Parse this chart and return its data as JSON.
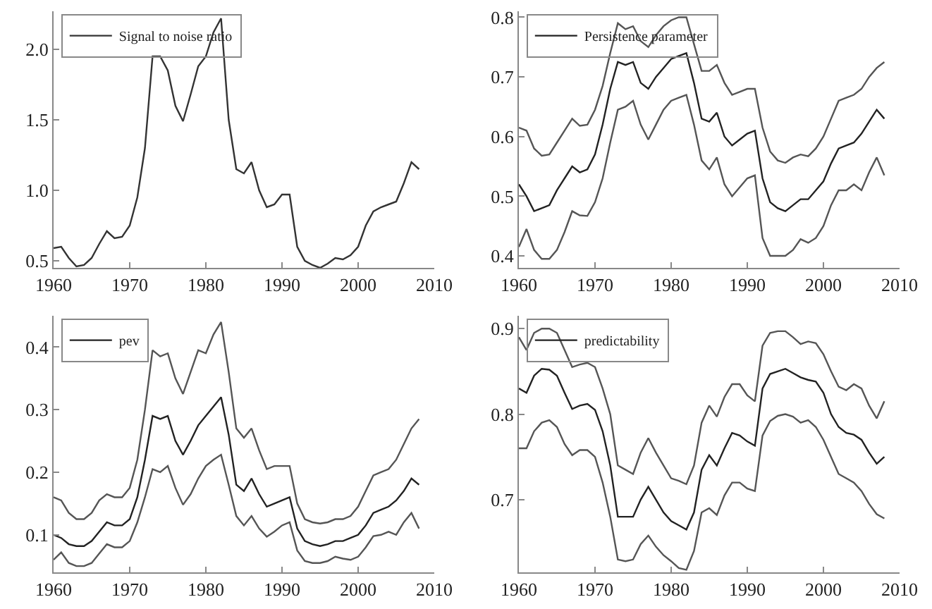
{
  "chart_data": [
    {
      "type": "line",
      "legend": "top left",
      "grid": false,
      "xlim": [
        1960,
        2010
      ],
      "xticks": [
        1960,
        1970,
        1980,
        1990,
        2000,
        2010
      ],
      "ylim": [
        0.45,
        2.27
      ],
      "yticks": [
        {
          "value": 0.5,
          "label": "0.5"
        },
        {
          "value": 1,
          "label": "1.0"
        },
        {
          "value": 1.5,
          "label": "1.5"
        },
        {
          "value": 2,
          "label": "2.0"
        }
      ],
      "x": [
        1960,
        1961,
        1962,
        1963,
        1964,
        1965,
        1966,
        1967,
        1968,
        1969,
        1970,
        1971,
        1972,
        1973,
        1974,
        1975,
        1976,
        1977,
        1978,
        1979,
        1980,
        1981,
        1982,
        1983,
        1984,
        1985,
        1986,
        1987,
        1988,
        1989,
        1990,
        1991,
        1992,
        1993,
        1994,
        1995,
        1996,
        1997,
        1998,
        1999,
        2000,
        2001,
        2002,
        2003,
        2004,
        2005,
        2006,
        2007,
        2008
      ],
      "series": [
        {
          "name": "Signal to noise ratio",
          "color": "#333333",
          "values": [
            0.59,
            0.6,
            0.52,
            0.46,
            0.47,
            0.52,
            0.62,
            0.71,
            0.66,
            0.67,
            0.75,
            0.95,
            1.3,
            1.95,
            1.95,
            1.85,
            1.6,
            1.49,
            1.68,
            1.88,
            1.95,
            2.12,
            2.22,
            1.5,
            1.15,
            1.12,
            1.2,
            1.0,
            0.88,
            0.9,
            0.97,
            0.97,
            0.6,
            0.5,
            0.47,
            0.45,
            0.48,
            0.52,
            0.51,
            0.54,
            0.6,
            0.75,
            0.85,
            0.88,
            0.9,
            0.92,
            1.05,
            1.2,
            1.15
          ]
        }
      ]
    },
    {
      "type": "line",
      "legend": "top left",
      "grid": false,
      "xlim": [
        1960,
        2010
      ],
      "xticks": [
        1960,
        1970,
        1980,
        1990,
        2000,
        2010
      ],
      "ylim": [
        0.38,
        0.81
      ],
      "yticks": [
        0.4,
        0.5,
        0.6,
        0.7,
        0.8
      ],
      "x": [
        1960,
        1961,
        1962,
        1963,
        1964,
        1965,
        1966,
        1967,
        1968,
        1969,
        1970,
        1971,
        1972,
        1973,
        1974,
        1975,
        1976,
        1977,
        1978,
        1979,
        1980,
        1981,
        1982,
        1983,
        1984,
        1985,
        1986,
        1987,
        1988,
        1989,
        1990,
        1991,
        1992,
        1993,
        1994,
        1995,
        1996,
        1997,
        1998,
        1999,
        2000,
        2001,
        2002,
        2003,
        2004,
        2005,
        2006,
        2007,
        2008
      ],
      "series": [
        {
          "color": "#555555",
          "values": [
            0.615,
            0.61,
            0.58,
            0.568,
            0.57,
            0.59,
            0.61,
            0.63,
            0.618,
            0.62,
            0.645,
            0.685,
            0.74,
            0.79,
            0.78,
            0.785,
            0.76,
            0.75,
            0.77,
            0.785,
            0.795,
            0.8,
            0.8,
            0.755,
            0.71,
            0.71,
            0.72,
            0.69,
            0.67,
            0.675,
            0.68,
            0.68,
            0.615,
            0.575,
            0.56,
            0.556,
            0.565,
            0.57,
            0.567,
            0.58,
            0.6,
            0.63,
            0.66,
            0.665,
            0.67,
            0.68,
            0.7,
            0.715,
            0.725
          ]
        },
        {
          "name": "Persistence parameter",
          "color": "#222222",
          "values": [
            0.52,
            0.5,
            0.475,
            0.48,
            0.485,
            0.51,
            0.53,
            0.55,
            0.54,
            0.545,
            0.57,
            0.62,
            0.68,
            0.725,
            0.72,
            0.725,
            0.69,
            0.68,
            0.7,
            0.715,
            0.73,
            0.735,
            0.74,
            0.69,
            0.63,
            0.625,
            0.64,
            0.6,
            0.585,
            0.595,
            0.605,
            0.61,
            0.53,
            0.49,
            0.48,
            0.475,
            0.485,
            0.495,
            0.495,
            0.51,
            0.525,
            0.555,
            0.58,
            0.585,
            0.59,
            0.605,
            0.625,
            0.645,
            0.63
          ]
        },
        {
          "color": "#555555",
          "values": [
            0.415,
            0.445,
            0.41,
            0.395,
            0.395,
            0.41,
            0.44,
            0.475,
            0.468,
            0.467,
            0.49,
            0.53,
            0.59,
            0.645,
            0.65,
            0.66,
            0.62,
            0.595,
            0.62,
            0.645,
            0.66,
            0.665,
            0.67,
            0.62,
            0.56,
            0.545,
            0.565,
            0.52,
            0.5,
            0.515,
            0.53,
            0.535,
            0.43,
            0.4,
            0.4,
            0.4,
            0.41,
            0.428,
            0.422,
            0.43,
            0.45,
            0.485,
            0.51,
            0.51,
            0.52,
            0.51,
            0.54,
            0.565,
            0.535
          ]
        }
      ]
    },
    {
      "type": "line",
      "legend": "top left",
      "grid": false,
      "xlim": [
        1960,
        2010
      ],
      "xticks": [
        1960,
        1970,
        1980,
        1990,
        2000,
        2010
      ],
      "ylim": [
        0.04,
        0.45
      ],
      "yticks": [
        0.1,
        0.2,
        0.3,
        0.4
      ],
      "x": [
        1960,
        1961,
        1962,
        1963,
        1964,
        1965,
        1966,
        1967,
        1968,
        1969,
        1970,
        1971,
        1972,
        1973,
        1974,
        1975,
        1976,
        1977,
        1978,
        1979,
        1980,
        1981,
        1982,
        1983,
        1984,
        1985,
        1986,
        1987,
        1988,
        1989,
        1990,
        1991,
        1992,
        1993,
        1994,
        1995,
        1996,
        1997,
        1998,
        1999,
        2000,
        2001,
        2002,
        2003,
        2004,
        2005,
        2006,
        2007,
        2008
      ],
      "series": [
        {
          "color": "#555555",
          "values": [
            0.16,
            0.155,
            0.135,
            0.125,
            0.125,
            0.135,
            0.155,
            0.165,
            0.16,
            0.16,
            0.175,
            0.22,
            0.3,
            0.395,
            0.385,
            0.39,
            0.35,
            0.325,
            0.36,
            0.395,
            0.39,
            0.42,
            0.44,
            0.36,
            0.27,
            0.255,
            0.27,
            0.235,
            0.205,
            0.21,
            0.21,
            0.21,
            0.15,
            0.125,
            0.12,
            0.118,
            0.12,
            0.125,
            0.125,
            0.13,
            0.145,
            0.17,
            0.195,
            0.2,
            0.205,
            0.22,
            0.245,
            0.27,
            0.285
          ]
        },
        {
          "name": "pev",
          "color": "#222222",
          "values": [
            0.1,
            0.095,
            0.085,
            0.082,
            0.082,
            0.09,
            0.105,
            0.12,
            0.115,
            0.115,
            0.125,
            0.16,
            0.22,
            0.29,
            0.285,
            0.29,
            0.25,
            0.228,
            0.25,
            0.275,
            0.29,
            0.305,
            0.32,
            0.26,
            0.18,
            0.17,
            0.19,
            0.165,
            0.145,
            0.15,
            0.155,
            0.16,
            0.11,
            0.09,
            0.085,
            0.082,
            0.085,
            0.09,
            0.09,
            0.095,
            0.1,
            0.115,
            0.135,
            0.14,
            0.145,
            0.155,
            0.17,
            0.19,
            0.18
          ]
        },
        {
          "color": "#555555",
          "values": [
            0.06,
            0.072,
            0.055,
            0.05,
            0.05,
            0.055,
            0.07,
            0.085,
            0.08,
            0.08,
            0.09,
            0.12,
            0.16,
            0.205,
            0.2,
            0.21,
            0.175,
            0.148,
            0.165,
            0.19,
            0.21,
            0.22,
            0.228,
            0.18,
            0.13,
            0.115,
            0.13,
            0.11,
            0.097,
            0.105,
            0.115,
            0.12,
            0.075,
            0.058,
            0.055,
            0.055,
            0.058,
            0.065,
            0.062,
            0.06,
            0.065,
            0.08,
            0.098,
            0.1,
            0.105,
            0.1,
            0.12,
            0.135,
            0.11
          ]
        }
      ]
    },
    {
      "type": "line",
      "legend": "top left",
      "grid": false,
      "xlim": [
        1960,
        2010
      ],
      "xticks": [
        1960,
        1970,
        1980,
        1990,
        2000,
        2010
      ],
      "ylim": [
        0.615,
        0.915
      ],
      "yticks": [
        0.7,
        0.8,
        0.9
      ],
      "x": [
        1960,
        1961,
        1962,
        1963,
        1964,
        1965,
        1966,
        1967,
        1968,
        1969,
        1970,
        1971,
        1972,
        1973,
        1974,
        1975,
        1976,
        1977,
        1978,
        1979,
        1980,
        1981,
        1982,
        1983,
        1984,
        1985,
        1986,
        1987,
        1988,
        1989,
        1990,
        1991,
        1992,
        1993,
        1994,
        1995,
        1996,
        1997,
        1998,
        1999,
        2000,
        2001,
        2002,
        2003,
        2004,
        2005,
        2006,
        2007,
        2008
      ],
      "series": [
        {
          "color": "#555555",
          "values": [
            0.89,
            0.875,
            0.895,
            0.9,
            0.9,
            0.895,
            0.875,
            0.855,
            0.858,
            0.86,
            0.855,
            0.83,
            0.8,
            0.74,
            0.735,
            0.73,
            0.755,
            0.772,
            0.755,
            0.74,
            0.725,
            0.722,
            0.718,
            0.74,
            0.79,
            0.81,
            0.797,
            0.82,
            0.835,
            0.835,
            0.822,
            0.815,
            0.88,
            0.895,
            0.897,
            0.897,
            0.89,
            0.882,
            0.885,
            0.883,
            0.87,
            0.85,
            0.832,
            0.828,
            0.835,
            0.83,
            0.81,
            0.795,
            0.815
          ]
        },
        {
          "name": "predictability",
          "color": "#222222",
          "values": [
            0.83,
            0.825,
            0.845,
            0.853,
            0.852,
            0.845,
            0.825,
            0.806,
            0.81,
            0.812,
            0.805,
            0.78,
            0.74,
            0.68,
            0.68,
            0.68,
            0.7,
            0.715,
            0.7,
            0.685,
            0.675,
            0.67,
            0.665,
            0.685,
            0.735,
            0.752,
            0.74,
            0.76,
            0.778,
            0.775,
            0.768,
            0.763,
            0.83,
            0.847,
            0.85,
            0.853,
            0.848,
            0.843,
            0.84,
            0.838,
            0.825,
            0.8,
            0.785,
            0.778,
            0.776,
            0.77,
            0.755,
            0.742,
            0.75
          ]
        },
        {
          "color": "#555555",
          "values": [
            0.76,
            0.76,
            0.78,
            0.79,
            0.793,
            0.785,
            0.765,
            0.752,
            0.758,
            0.758,
            0.75,
            0.72,
            0.68,
            0.63,
            0.628,
            0.63,
            0.648,
            0.658,
            0.645,
            0.635,
            0.628,
            0.62,
            0.618,
            0.64,
            0.685,
            0.69,
            0.682,
            0.705,
            0.72,
            0.72,
            0.713,
            0.71,
            0.775,
            0.792,
            0.798,
            0.8,
            0.797,
            0.79,
            0.793,
            0.785,
            0.77,
            0.75,
            0.73,
            0.725,
            0.72,
            0.71,
            0.695,
            0.683,
            0.678
          ]
        }
      ]
    }
  ]
}
